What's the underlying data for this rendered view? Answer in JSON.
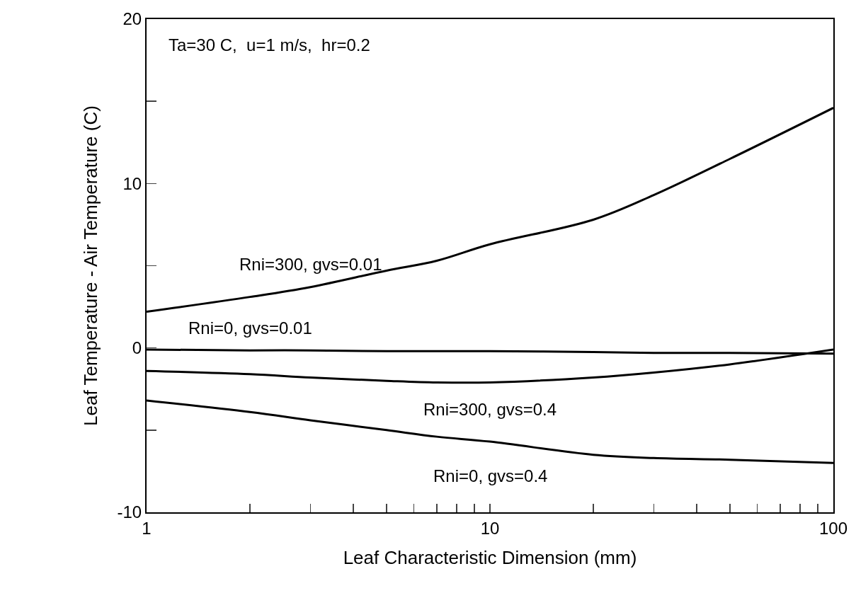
{
  "chart_data": {
    "type": "line",
    "xlabel": "Leaf Characteristic Dimension (mm)",
    "ylabel": "Leaf Temperature - Air Temperature (C)",
    "log": "x",
    "grid": false,
    "marker": "none",
    "line_style": "solid",
    "x": [
      1,
      2,
      3,
      5,
      7,
      10,
      20,
      30,
      50,
      100
    ],
    "xlim": [
      1,
      100
    ],
    "xticks": [
      1,
      {
        "value": 2,
        "label": null
      },
      {
        "value": 3,
        "label": null
      },
      {
        "value": 4,
        "label": null
      },
      {
        "value": 5,
        "label": null
      },
      {
        "value": 6,
        "label": null
      },
      {
        "value": 7,
        "label": null
      },
      {
        "value": 8,
        "label": null
      },
      {
        "value": 9,
        "label": null
      },
      10,
      {
        "value": 20,
        "label": null
      },
      {
        "value": 30,
        "label": null
      },
      {
        "value": 40,
        "label": null
      },
      {
        "value": 50,
        "label": null
      },
      {
        "value": 60,
        "label": null
      },
      {
        "value": 70,
        "label": null
      },
      {
        "value": 80,
        "label": null
      },
      {
        "value": 90,
        "label": null
      },
      100
    ],
    "ylim": [
      -10,
      20
    ],
    "yticks": [
      -10,
      {
        "value": -5,
        "label": null
      },
      0,
      {
        "value": 5,
        "label": null
      },
      10,
      {
        "value": 15,
        "label": null
      },
      20
    ],
    "series": [
      {
        "name": "Rni=300, gvs=0.01",
        "color": "#000000",
        "values": [
          2.2,
          3.1,
          3.7,
          4.7,
          5.3,
          6.3,
          7.8,
          9.3,
          11.5,
          14.6
        ]
      },
      {
        "name": "Rni=0, gvs=0.01",
        "color": "#000000",
        "values": [
          -0.1,
          -0.15,
          -0.15,
          -0.2,
          -0.2,
          -0.2,
          -0.25,
          -0.3,
          -0.3,
          -0.35
        ]
      },
      {
        "name": "Rni=300, gvs=0.4",
        "color": "#000000",
        "values": [
          -1.4,
          -1.6,
          -1.8,
          -2.0,
          -2.1,
          -2.1,
          -1.8,
          -1.5,
          -1.0,
          -0.1
        ]
      },
      {
        "name": "Rni=0, gvs=0.4",
        "color": "#000000",
        "values": [
          -3.2,
          -3.9,
          -4.4,
          -5.0,
          -5.4,
          -5.7,
          -6.5,
          -6.7,
          -6.8,
          -7.0
        ]
      }
    ],
    "annotations": [
      "Ta=30 C,  u=1 m/s,  hr=0.2"
    ]
  }
}
